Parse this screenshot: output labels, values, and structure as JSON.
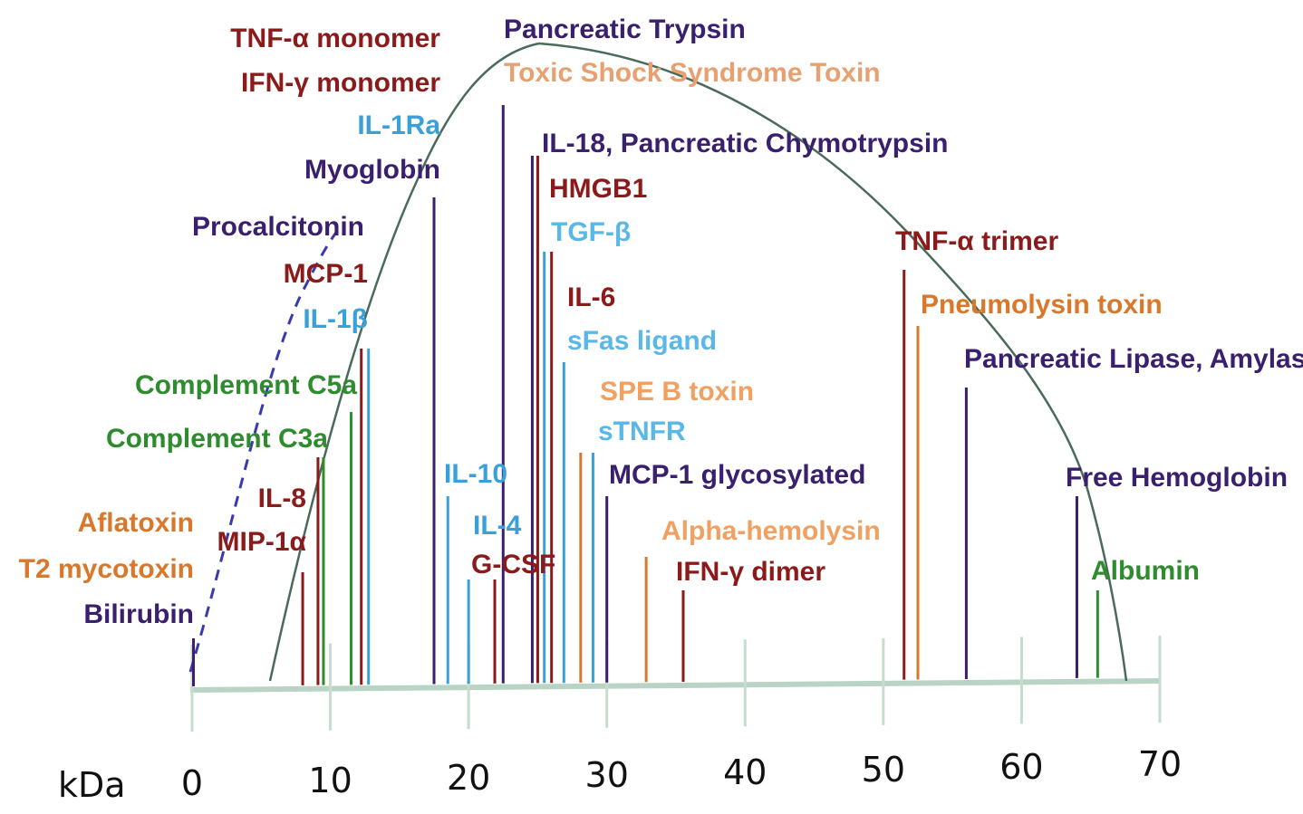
{
  "chart_data": {
    "type": "bar",
    "xlabel": "kDa",
    "xlim": [
      0,
      70
    ],
    "x_ticks": [
      "0",
      "10",
      "20",
      "30",
      "40",
      "50",
      "60",
      "70"
    ],
    "grid": false,
    "curve": {
      "type": "filtration-cutoff",
      "style": [
        "dashed",
        "solid"
      ]
    },
    "series": [
      {
        "label": "Bilirubin",
        "x": 0.1,
        "color": "#3a1f6e"
      },
      {
        "label": "T2 mycotoxin",
        "x": 0.1,
        "color": "#d9772b"
      },
      {
        "label": "Aflatoxin",
        "x": 0.1,
        "color": "#d9772b"
      },
      {
        "label": "MIP-1α",
        "x": 8,
        "color": "#8b1a1a"
      },
      {
        "label": "IL-8",
        "x": 9.5,
        "color": "#8b1a1a"
      },
      {
        "label": "Complement C3a",
        "x": 9.5,
        "color": "#2e8b2e"
      },
      {
        "label": "Complement C5a",
        "x": 11.5,
        "color": "#2e8b2e"
      },
      {
        "label": "IL-1β",
        "x": 12.5,
        "color": "#3aa0d8"
      },
      {
        "label": "MCP-1",
        "x": 12.5,
        "color": "#8b1a1a"
      },
      {
        "label": "Procalcitonin",
        "x": 13,
        "color": "#3a1f6e"
      },
      {
        "label": "Myoglobin",
        "x": 17.5,
        "color": "#3a1f6e"
      },
      {
        "label": "IL-1Ra",
        "x": 17.5,
        "color": "#3aa0d8"
      },
      {
        "label": "IFN-γ monomer",
        "x": 17.5,
        "color": "#8b1a1a"
      },
      {
        "label": "TNF-α monomer",
        "x": 17.5,
        "color": "#8b1a1a"
      },
      {
        "label": "IL-10",
        "x": 18.5,
        "color": "#3aa0d8"
      },
      {
        "label": "IL-4",
        "x": 20,
        "color": "#3aa0d8"
      },
      {
        "label": "G-CSF",
        "x": 21.5,
        "color": "#8b1a1a"
      },
      {
        "label": "Pancreatic Trypsin",
        "x": 22.5,
        "color": "#3a1f6e"
      },
      {
        "label": "Toxic Shock Syndrome Toxin",
        "x": 22.5,
        "color": "#d9772b"
      },
      {
        "label": "IL-18, Pancreatic Chymotrypsin",
        "x": 25,
        "color": "#3a1f6e"
      },
      {
        "label": "HMGB1",
        "x": 25,
        "color": "#8b1a1a"
      },
      {
        "label": "TGF-β",
        "x": 26,
        "color": "#3aa0d8"
      },
      {
        "label": "IL-6",
        "x": 26,
        "color": "#8b1a1a"
      },
      {
        "label": "sFas ligand",
        "x": 26.5,
        "color": "#3aa0d8"
      },
      {
        "label": "SPE B toxin",
        "x": 28.5,
        "color": "#d9772b"
      },
      {
        "label": "sTNFR",
        "x": 29,
        "color": "#3aa0d8"
      },
      {
        "label": "MCP-1 glycosylated",
        "x": 30,
        "color": "#3a1f6e"
      },
      {
        "label": "Alpha-hemolysin",
        "x": 33.5,
        "color": "#d9772b"
      },
      {
        "label": "IFN-γ dimer",
        "x": 35,
        "color": "#8b1a1a"
      },
      {
        "label": "TNF-α trimer",
        "x": 51.5,
        "color": "#8b1a1a"
      },
      {
        "label": "Pneumolysin toxin",
        "x": 52.5,
        "color": "#d9772b"
      },
      {
        "label": "Pancreatic Lipase, Amylase",
        "x": 56,
        "color": "#3a1f6e"
      },
      {
        "label": "Free Hemoglobin",
        "x": 64,
        "color": "#3a1f6e"
      },
      {
        "label": "Albumin",
        "x": 65.5,
        "color": "#2e8b2e"
      }
    ]
  }
}
